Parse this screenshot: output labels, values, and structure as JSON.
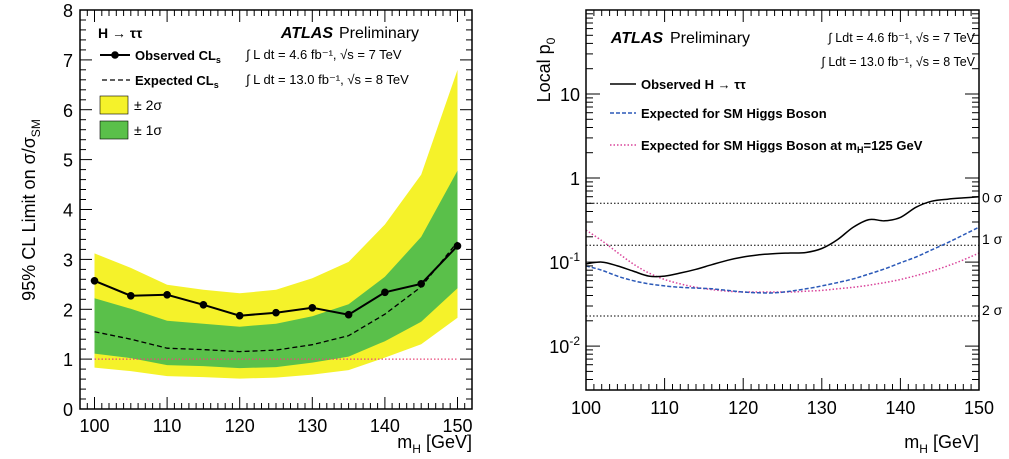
{
  "chart_data": [
    {
      "type": "line",
      "xlabel": "m_H [GeV]",
      "ylabel": "95% CL Limit on σ/σ_SM",
      "xlim": [
        98,
        152
      ],
      "ylim": [
        0,
        8
      ],
      "x_ticks": [
        "100",
        "110",
        "120",
        "130",
        "140",
        "150"
      ],
      "y_ticks": [
        "0",
        "1",
        "2",
        "3",
        "4",
        "5",
        "6",
        "7",
        "8"
      ],
      "legend_position": "top-left",
      "x": [
        100,
        105,
        110,
        115,
        120,
        125,
        130,
        135,
        140,
        145,
        150
      ],
      "series": [
        {
          "name": "Observed CLs",
          "style": "solid-with-markers",
          "color": "#000000",
          "values": [
            2.57,
            2.27,
            2.29,
            2.09,
            1.87,
            1.93,
            2.03,
            1.89,
            2.34,
            2.51,
            3.27
          ]
        },
        {
          "name": "Expected CLs",
          "style": "dashed",
          "color": "#000000",
          "values": [
            1.55,
            1.4,
            1.22,
            1.19,
            1.15,
            1.18,
            1.29,
            1.47,
            1.9,
            2.45,
            3.35
          ]
        },
        {
          "name": "± 2σ",
          "style": "band",
          "color": "#f5f22a",
          "lower": [
            0.83,
            0.76,
            0.66,
            0.64,
            0.61,
            0.63,
            0.69,
            0.78,
            1.03,
            1.3,
            1.83
          ],
          "upper": [
            3.12,
            2.83,
            2.49,
            2.39,
            2.32,
            2.39,
            2.62,
            2.95,
            3.7,
            4.7,
            6.8
          ]
        },
        {
          "name": "± 1σ",
          "style": "band",
          "color": "#5ac04a",
          "lower": [
            1.11,
            1.02,
            0.88,
            0.86,
            0.82,
            0.84,
            0.93,
            1.05,
            1.36,
            1.75,
            2.42
          ],
          "upper": [
            2.22,
            2.01,
            1.77,
            1.71,
            1.65,
            1.71,
            1.86,
            2.1,
            2.65,
            3.45,
            4.78
          ]
        },
        {
          "name": "",
          "style": "dotted",
          "color": "#e8497a",
          "values": [
            1,
            1,
            1,
            1,
            1,
            1,
            1,
            1,
            1,
            1,
            1
          ]
        }
      ],
      "annotations": {
        "channel": "H → ττ",
        "atlas": "ATLAS",
        "preliminary": "Preliminary",
        "observed_label": "Observed CL",
        "observed_sub": "s",
        "expected_label": "Expected CL",
        "expected_sub": "s",
        "lumi_7": "∫ L dt = 4.6 fb⁻¹, √s = 7 TeV",
        "lumi_8": "∫ L dt = 13.0 fb⁻¹, √s = 8 TeV",
        "band_2s": "± 2σ",
        "band_1s": "± 1σ"
      }
    },
    {
      "type": "line",
      "xlabel": "m_H [GeV]",
      "ylabel": "Local p_0",
      "yscale": "log",
      "xlim": [
        100,
        150
      ],
      "ylim": [
        0.003,
        100
      ],
      "x_ticks": [
        "100",
        "110",
        "120",
        "130",
        "140",
        "150"
      ],
      "y_ticks": [
        {
          "value": 0.01,
          "base": "10",
          "exp": "-2"
        },
        {
          "value": 0.1,
          "base": "10",
          "exp": "-1"
        },
        {
          "value": 1,
          "base": "1",
          "exp": ""
        },
        {
          "value": 10,
          "base": "10",
          "exp": ""
        }
      ],
      "legend_position": "top-left",
      "x": [
        100,
        102,
        104,
        106,
        108,
        110,
        112,
        114,
        116,
        118,
        120,
        122,
        124,
        126,
        128,
        130,
        132,
        134,
        136,
        138,
        140,
        142,
        144,
        146,
        148,
        150
      ],
      "series": [
        {
          "name": "Observed H → ττ",
          "style": "solid",
          "color": "#000000",
          "values": [
            0.095,
            0.1,
            0.09,
            0.078,
            0.068,
            0.068,
            0.074,
            0.082,
            0.093,
            0.105,
            0.115,
            0.122,
            0.126,
            0.128,
            0.13,
            0.145,
            0.185,
            0.26,
            0.32,
            0.31,
            0.34,
            0.45,
            0.53,
            0.56,
            0.58,
            0.6
          ]
        },
        {
          "name": "Expected for SM Higgs Boson",
          "style": "dashed",
          "color": "#2b59b8",
          "values": [
            0.09,
            0.08,
            0.068,
            0.06,
            0.055,
            0.052,
            0.05,
            0.049,
            0.048,
            0.046,
            0.044,
            0.043,
            0.043,
            0.045,
            0.048,
            0.052,
            0.057,
            0.063,
            0.072,
            0.083,
            0.098,
            0.115,
            0.14,
            0.17,
            0.21,
            0.26
          ]
        },
        {
          "name": "Expected for SM Higgs Boson at m_H=125 GeV",
          "style": "dotted",
          "color": "#d9439a",
          "values": [
            0.24,
            0.18,
            0.13,
            0.095,
            0.074,
            0.062,
            0.055,
            0.05,
            0.047,
            0.045,
            0.044,
            0.044,
            0.044,
            0.044,
            0.045,
            0.046,
            0.048,
            0.05,
            0.053,
            0.057,
            0.062,
            0.069,
            0.078,
            0.09,
            0.106,
            0.128
          ]
        }
      ],
      "reference_lines": [
        {
          "label": "0 σ",
          "value": 0.5
        },
        {
          "label": "1 σ",
          "value": 0.1587
        },
        {
          "label": "2 σ",
          "value": 0.0228
        }
      ],
      "annotations": {
        "atlas": "ATLAS",
        "preliminary": "Preliminary",
        "lumi_7": "∫ Ldt = 4.6 fb⁻¹, √s = 7 TeV",
        "lumi_8": "∫ Ldt = 13.0 fb⁻¹, √s = 8 TeV"
      }
    }
  ]
}
